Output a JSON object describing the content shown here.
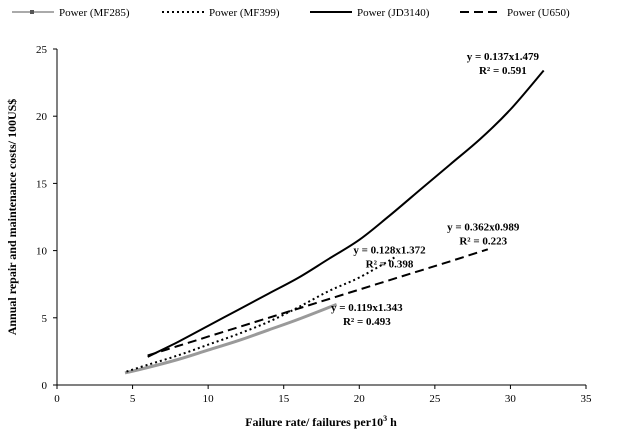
{
  "chart_data": {
    "type": "line",
    "title": "",
    "xlabel_main": "Failure rate/ failures per10",
    "xlabel_sup": "3",
    "xlabel_tail": " h",
    "ylabel": "Annual repair and maintenance costs/ 100US$",
    "xlim": [
      0,
      35
    ],
    "ylim": [
      0,
      25
    ],
    "xticks": [
      0,
      5,
      10,
      15,
      20,
      25,
      30,
      35
    ],
    "yticks": [
      0,
      5,
      10,
      15,
      20,
      25
    ],
    "legend_position": "top",
    "grid": false,
    "series": [
      {
        "name": "Power (MF285)",
        "style": "solid-marker",
        "color": "#9a9a9a",
        "x": [
          4.5,
          6,
          8,
          10,
          12,
          14,
          16,
          18.5
        ],
        "y": [
          0.9,
          1.3,
          1.9,
          2.6,
          3.3,
          4.1,
          4.9,
          6.0
        ]
      },
      {
        "name": "Power (MF399)",
        "style": "dotted",
        "color": "#000000",
        "x": [
          4.6,
          6,
          8,
          10,
          12,
          14,
          16,
          18,
          20,
          22.5
        ],
        "y": [
          1.0,
          1.5,
          2.2,
          3.0,
          3.8,
          4.7,
          5.8,
          7.0,
          8.0,
          9.6
        ]
      },
      {
        "name": "Power (JD3140)",
        "style": "solid",
        "color": "#000000",
        "x": [
          6,
          8,
          10,
          12,
          14,
          16,
          18,
          20,
          22,
          24,
          26,
          28,
          30,
          32.2
        ],
        "y": [
          2.1,
          3.2,
          4.4,
          5.6,
          6.8,
          8.0,
          9.4,
          10.8,
          12.6,
          14.5,
          16.4,
          18.3,
          20.5,
          23.4
        ]
      },
      {
        "name": "Power (U650)",
        "style": "dashed",
        "color": "#000000",
        "x": [
          6,
          8,
          10,
          12,
          14,
          16,
          18,
          20,
          22,
          24,
          26,
          28.5
        ],
        "y": [
          2.2,
          2.9,
          3.6,
          4.3,
          5.0,
          5.7,
          6.4,
          7.1,
          7.8,
          8.5,
          9.2,
          10.1
        ]
      }
    ],
    "annotations": [
      {
        "line1": "y = 0.137x1.479",
        "line2": "R² = 0.591",
        "x": 29.5,
        "y": 24.2
      },
      {
        "line1": "y = 0.362x0.989",
        "line2": "R² = 0.223",
        "x": 28.2,
        "y": 11.5
      },
      {
        "line1": "y = 0.128x1.372",
        "line2": "R² = 0.398",
        "x": 22.0,
        "y": 9.8
      },
      {
        "line1": "y = 0.119x1.343",
        "line2": "R² = 0.493",
        "x": 20.5,
        "y": 5.5
      }
    ]
  }
}
